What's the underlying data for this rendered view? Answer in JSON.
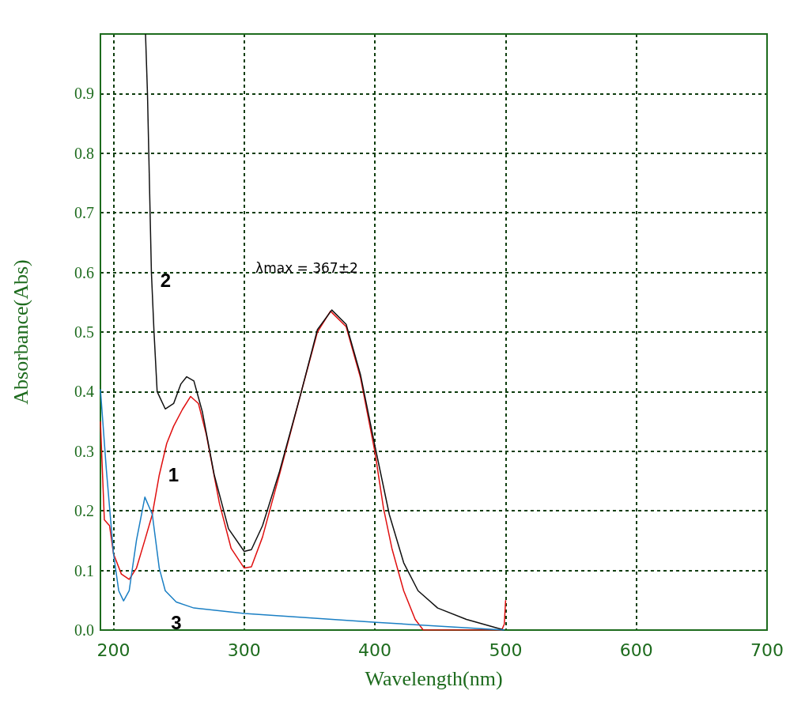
{
  "chart_data": {
    "type": "line",
    "xlabel": "Wavelength(nm)",
    "ylabel": "Absorbance(Abs)",
    "xlim": [
      190,
      700
    ],
    "xticks": [
      200,
      300,
      400,
      500,
      600,
      700
    ],
    "ylim": [
      0,
      1.0
    ],
    "yticks": [
      {
        "value": 0,
        "label": "0.0"
      },
      0.1,
      0.2,
      0.3,
      0.4,
      0.5,
      0.6,
      0.7,
      0.8,
      0.9
    ],
    "grid": true,
    "line_style": "solid",
    "marker": "none",
    "series": [
      {
        "name": "1",
        "color": "#e01010",
        "x": [
          190,
          193,
          197,
          200,
          206,
          212,
          217.6,
          224,
          229.7,
          235,
          240.7,
          246,
          252.7,
          259,
          265,
          271,
          281,
          290,
          300,
          305.5,
          314,
          327,
          343,
          356,
          366,
          378,
          389,
          400,
          406.6,
          413,
          422,
          430.8,
          437,
          497,
          499,
          500
        ],
        "values": [
          0.35,
          0.185,
          0.175,
          0.128,
          0.094,
          0.085,
          0.104,
          0.151,
          0.194,
          0.26,
          0.313,
          0.342,
          0.37,
          0.392,
          0.38,
          0.328,
          0.213,
          0.137,
          0.104,
          0.106,
          0.156,
          0.261,
          0.394,
          0.5,
          0.535,
          0.509,
          0.423,
          0.299,
          0.204,
          0.137,
          0.066,
          0.018,
          0,
          0,
          0.01,
          0.05
        ]
      },
      {
        "name": "2",
        "color": "#111111",
        "x": [
          224.5,
          226,
          227,
          228,
          229,
          231,
          233.4,
          239.6,
          246,
          251.6,
          256,
          261.5,
          268,
          277,
          288,
          300,
          305.5,
          314,
          327,
          343,
          356,
          367,
          378,
          389,
          400,
          411,
          422,
          433,
          448,
          470,
          499
        ],
        "values": [
          1.0,
          0.9,
          0.8,
          0.7,
          0.6,
          0.5,
          0.4,
          0.371,
          0.38,
          0.413,
          0.425,
          0.418,
          0.366,
          0.261,
          0.17,
          0.132,
          0.135,
          0.175,
          0.266,
          0.394,
          0.504,
          0.537,
          0.513,
          0.428,
          0.309,
          0.194,
          0.113,
          0.066,
          0.037,
          0.018,
          0
        ]
      },
      {
        "name": "3",
        "color": "#1a7fc4",
        "x": [
          190,
          194.5,
          200,
          204,
          207.7,
          212,
          217.6,
          224,
          229.7,
          235,
          239.6,
          248,
          261.5,
          300,
          401,
          499
        ],
        "values": [
          0.404,
          0.27,
          0.128,
          0.066,
          0.049,
          0.066,
          0.151,
          0.223,
          0.194,
          0.104,
          0.066,
          0.047,
          0.037,
          0.028,
          0.013,
          0
        ]
      }
    ],
    "annotations": [
      "λmax = 367±2"
    ]
  }
}
